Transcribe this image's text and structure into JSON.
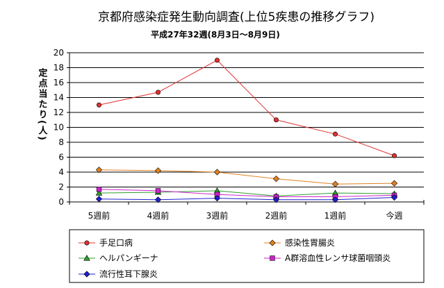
{
  "chart_data": {
    "type": "line",
    "title": "京都府感染症発生動向調査(上位5疾患の推移グラフ)",
    "subtitle": "平成27年32週(8月3日～8月9日)",
    "ylabel": "定点当たり(人)",
    "xlabel": "",
    "categories": [
      "5週前",
      "4週前",
      "3週前",
      "2週前",
      "1週前",
      "今週"
    ],
    "ylim": [
      0,
      20
    ],
    "yticks": [
      0,
      2,
      4,
      6,
      8,
      10,
      12,
      14,
      16,
      18,
      20
    ],
    "grid": "horizontal",
    "legend_position": "bottom",
    "series": [
      {
        "name": "手足口病",
        "values": [
          13.0,
          14.7,
          19.0,
          11.0,
          9.1,
          6.2
        ],
        "color": "#e03030",
        "marker": "circle"
      },
      {
        "name": "感染性胃腸炎",
        "values": [
          4.3,
          4.2,
          4.0,
          3.1,
          2.4,
          2.5
        ],
        "color": "#e08020",
        "marker": "diamond"
      },
      {
        "name": "ヘルパンギーナ",
        "values": [
          1.2,
          1.3,
          1.5,
          0.8,
          1.2,
          1.1
        ],
        "color": "#2ca02c",
        "marker": "triangle"
      },
      {
        "name": "A群溶血性レンサ球菌咽頭炎",
        "values": [
          1.7,
          1.5,
          1.0,
          0.7,
          0.7,
          0.9
        ],
        "color": "#cc22cc",
        "marker": "square"
      },
      {
        "name": "流行性耳下腺炎",
        "values": [
          0.4,
          0.3,
          0.5,
          0.3,
          0.3,
          0.6
        ],
        "color": "#1f1fd0",
        "marker": "diamond"
      }
    ]
  }
}
